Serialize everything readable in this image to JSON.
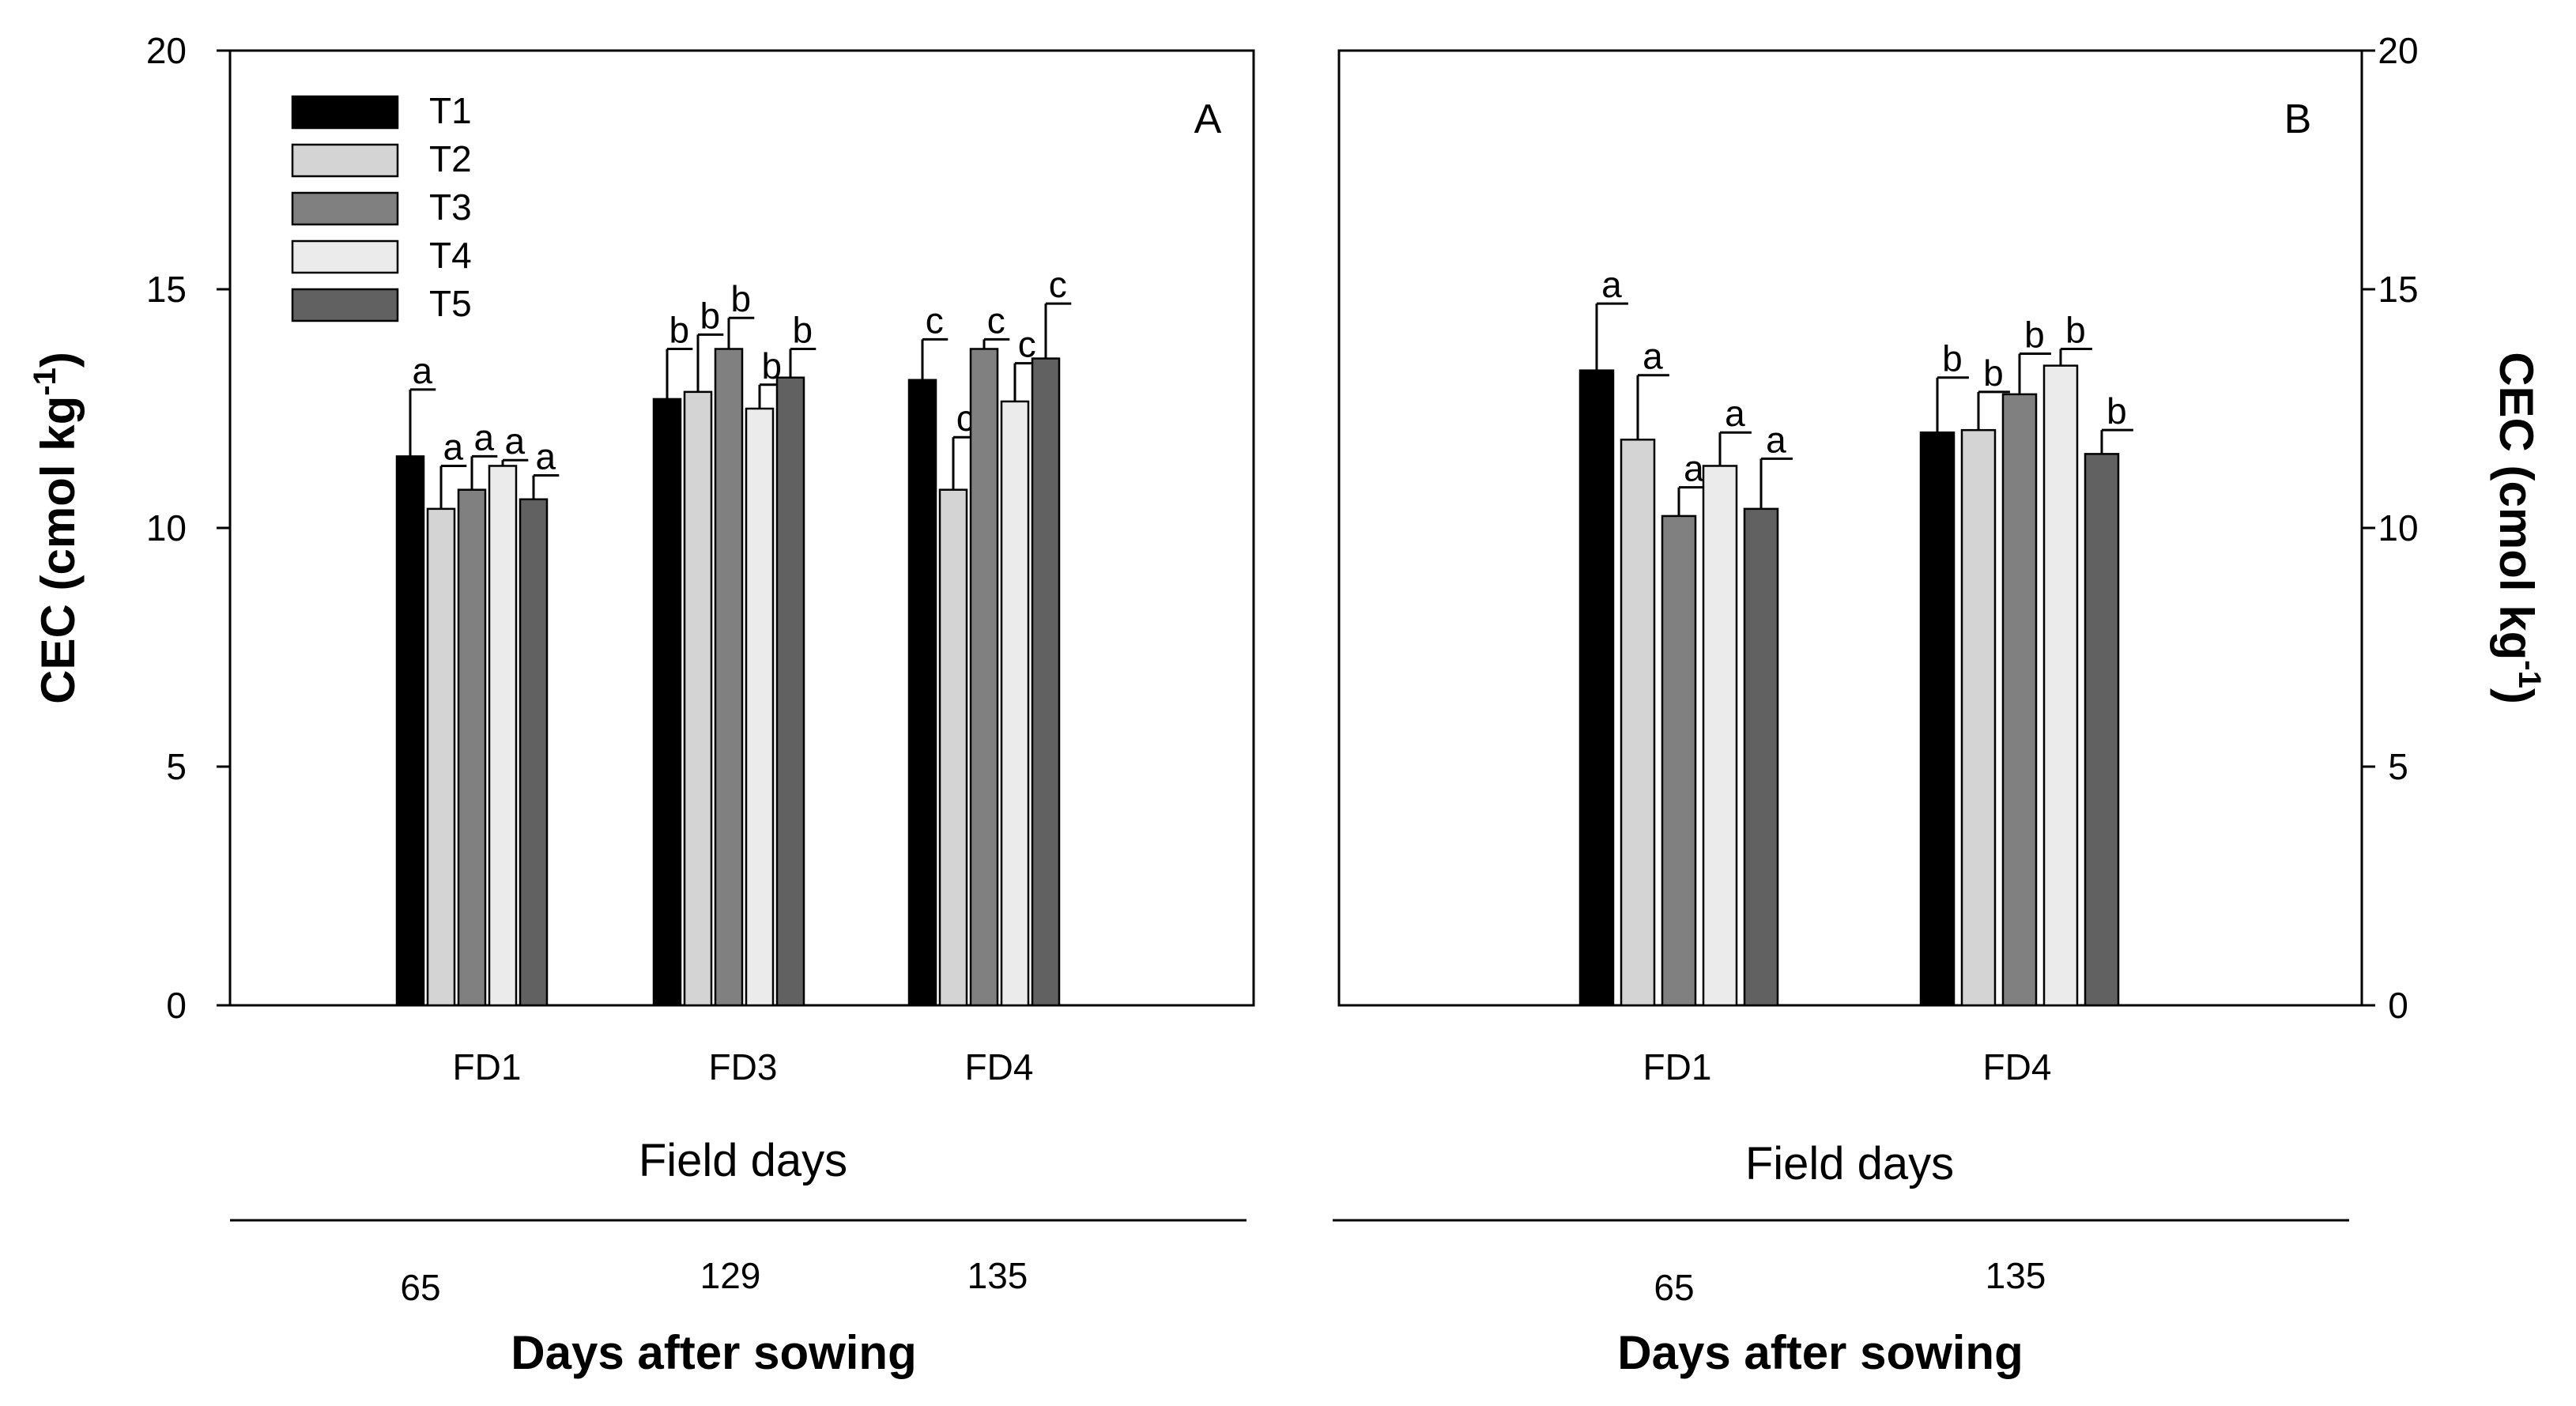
{
  "chart_data": [
    {
      "type": "bar",
      "panel": "A",
      "categories": [
        "FD1",
        "FD3",
        "FD4"
      ],
      "secondary_axis_labels": [
        "65",
        "129",
        "135"
      ],
      "xlabel": "Field days",
      "secondary_xlabel": "Days after sowing",
      "ylabel_main": "CEC (cmol kg",
      "ylabel_sup": "-1",
      "ylabel_close": ")",
      "ylim": [
        0,
        20
      ],
      "yticks": [
        "0",
        "5",
        "10",
        "15",
        "20"
      ],
      "legend_position": "top-left",
      "series": [
        {
          "name": "T1",
          "values": [
            11.5,
            12.7,
            13.1
          ],
          "errors": [
            1.4,
            1.05,
            0.85
          ],
          "letters": [
            "a",
            "b",
            "c"
          ]
        },
        {
          "name": "T2",
          "values": [
            10.4,
            12.85,
            10.8
          ],
          "errors": [
            0.9,
            1.2,
            1.1
          ],
          "letters": [
            "a",
            "b",
            "c"
          ]
        },
        {
          "name": "T3",
          "values": [
            10.8,
            13.75,
            13.75
          ],
          "errors": [
            0.7,
            0.65,
            0.2
          ],
          "letters": [
            "a",
            "b",
            "c"
          ]
        },
        {
          "name": "T4",
          "values": [
            11.3,
            12.5,
            12.65
          ],
          "errors": [
            0.12,
            0.5,
            0.8
          ],
          "letters": [
            "a",
            "b",
            "c"
          ]
        },
        {
          "name": "T5",
          "values": [
            10.6,
            13.15,
            13.55
          ],
          "errors": [
            0.5,
            0.6,
            1.15
          ],
          "letters": [
            "a",
            "b",
            "c"
          ]
        }
      ]
    },
    {
      "type": "bar",
      "panel": "B",
      "categories": [
        "FD1",
        "FD4"
      ],
      "secondary_axis_labels": [
        "65",
        "135"
      ],
      "xlabel": "Field days",
      "secondary_xlabel": "Days after sowing",
      "ylabel_main": "CEC (cmol kg",
      "ylabel_sup": "-1",
      "ylabel_close": ")",
      "ylim": [
        0,
        20
      ],
      "yticks": [
        "0",
        "5",
        "10",
        "15",
        "20"
      ],
      "series": [
        {
          "name": "T1",
          "values": [
            13.3,
            12.0
          ],
          "errors": [
            1.4,
            1.15
          ],
          "letters": [
            "a",
            "b"
          ]
        },
        {
          "name": "T2",
          "values": [
            11.85,
            12.05
          ],
          "errors": [
            1.35,
            0.8
          ],
          "letters": [
            "a",
            "b"
          ]
        },
        {
          "name": "T3",
          "values": [
            10.25,
            12.8
          ],
          "errors": [
            0.6,
            0.85
          ],
          "letters": [
            "a",
            "b"
          ]
        },
        {
          "name": "T4",
          "values": [
            11.3,
            13.4
          ],
          "errors": [
            0.7,
            0.35
          ],
          "letters": [
            "a",
            "b"
          ]
        },
        {
          "name": "T5",
          "values": [
            10.4,
            11.55
          ],
          "errors": [
            1.05,
            0.5
          ],
          "letters": [
            "a",
            "b"
          ]
        }
      ]
    }
  ],
  "series_colors": {
    "T1": "#000000",
    "T2": "#d4d4d4",
    "T3": "#808080",
    "T4": "#ebebeb",
    "T5": "#616161"
  }
}
